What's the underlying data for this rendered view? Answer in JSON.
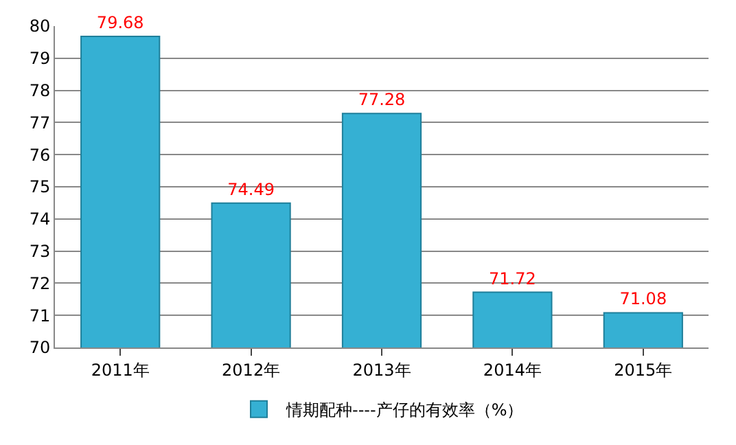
{
  "chart_data": {
    "type": "bar",
    "categories": [
      "2011年",
      "2012年",
      "2013年",
      "2014年",
      "2015年"
    ],
    "series": [
      {
        "name": "情期配种----产仔的有效率（%）",
        "color": "#35b0d3",
        "values": [
          79.68,
          74.49,
          77.28,
          71.72,
          71.08
        ]
      }
    ],
    "ylim": [
      70,
      80
    ],
    "yticks": [
      70,
      71,
      72,
      73,
      74,
      75,
      76,
      77,
      78,
      79,
      80
    ],
    "grid": "y",
    "legend": "bottom",
    "data_labels": true
  }
}
